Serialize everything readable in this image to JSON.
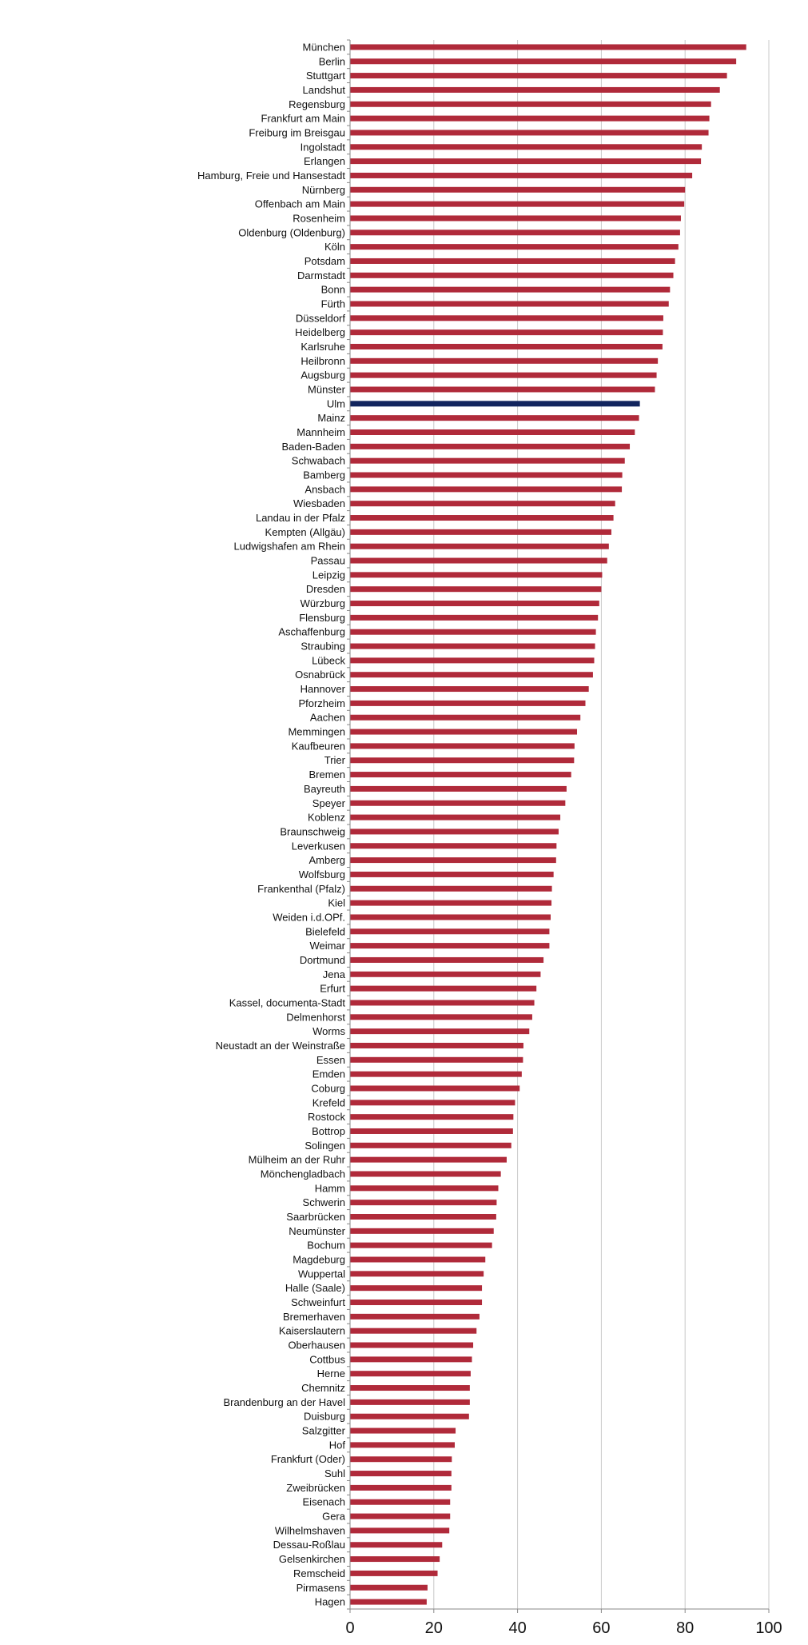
{
  "chart_data": {
    "type": "bar",
    "orientation": "horizontal",
    "categories": [
      "München",
      "Berlin",
      "Stuttgart",
      "Landshut",
      "Regensburg",
      "Frankfurt am Main",
      "Freiburg im Breisgau",
      "Ingolstadt",
      "Erlangen",
      "Hamburg, Freie und Hansestadt",
      "Nürnberg",
      "Offenbach am Main",
      "Rosenheim",
      "Oldenburg (Oldenburg)",
      "Köln",
      "Potsdam",
      "Darmstadt",
      "Bonn",
      "Fürth",
      "Düsseldorf",
      "Heidelberg",
      "Karlsruhe",
      "Heilbronn",
      "Augsburg",
      "Münster",
      "Ulm",
      "Mainz",
      "Mannheim",
      "Baden-Baden",
      "Schwabach",
      "Bamberg",
      "Ansbach",
      "Wiesbaden",
      "Landau in der Pfalz",
      "Kempten (Allgäu)",
      "Ludwigshafen am Rhein",
      "Passau",
      "Leipzig",
      "Dresden",
      "Würzburg",
      "Flensburg",
      "Aschaffenburg",
      "Straubing",
      "Lübeck",
      "Osnabrück",
      "Hannover",
      "Pforzheim",
      "Aachen",
      "Memmingen",
      "Kaufbeuren",
      "Trier",
      "Bremen",
      "Bayreuth",
      "Speyer",
      "Koblenz",
      "Braunschweig",
      "Leverkusen",
      "Amberg",
      "Wolfsburg",
      "Frankenthal (Pfalz)",
      "Kiel",
      "Weiden i.d.OPf.",
      "Bielefeld",
      "Weimar",
      "Dortmund",
      "Jena",
      "Erfurt",
      "Kassel, documenta-Stadt",
      "Delmenhorst",
      "Worms",
      "Neustadt an der Weinstraße",
      "Essen",
      "Emden",
      "Coburg",
      "Krefeld",
      "Rostock",
      "Bottrop",
      "Solingen",
      "Mülheim an der Ruhr",
      "Mönchengladbach",
      "Hamm",
      "Schwerin",
      "Saarbrücken",
      "Neumünster",
      "Bochum",
      "Magdeburg",
      "Wuppertal",
      "Halle (Saale)",
      "Schweinfurt",
      "Bremerhaven",
      "Kaiserslautern",
      "Oberhausen",
      "Cottbus",
      "Herne",
      "Chemnitz",
      "Brandenburg an der Havel",
      "Duisburg",
      "Salzgitter",
      "Hof",
      "Frankfurt (Oder)",
      "Suhl",
      "Zweibrücken",
      "Eisenach",
      "Gera",
      "Wilhelmshaven",
      "Dessau-Roßlau",
      "Gelsenkirchen",
      "Remscheid",
      "Pirmasens",
      "Hagen"
    ],
    "values": [
      94.6,
      92.2,
      90.0,
      88.3,
      86.2,
      85.8,
      85.6,
      84.0,
      83.8,
      81.7,
      80.0,
      79.8,
      79.0,
      78.8,
      78.4,
      77.6,
      77.2,
      76.4,
      76.1,
      74.8,
      74.7,
      74.6,
      73.5,
      73.2,
      72.8,
      69.2,
      69.0,
      68.0,
      66.8,
      65.6,
      65.0,
      64.9,
      63.3,
      62.9,
      62.4,
      61.8,
      61.4,
      60.2,
      60.0,
      59.5,
      59.2,
      58.7,
      58.5,
      58.3,
      58.0,
      57.0,
      56.2,
      55.0,
      54.2,
      53.6,
      53.5,
      52.8,
      51.7,
      51.4,
      50.2,
      49.8,
      49.3,
      49.2,
      48.6,
      48.2,
      48.1,
      47.9,
      47.6,
      47.6,
      46.2,
      45.5,
      44.5,
      44.0,
      43.5,
      42.8,
      41.4,
      41.3,
      41.0,
      40.5,
      39.4,
      39.0,
      38.9,
      38.5,
      37.4,
      36.0,
      35.4,
      35.0,
      34.9,
      34.3,
      33.9,
      32.3,
      31.9,
      31.5,
      31.5,
      30.9,
      30.2,
      29.4,
      29.1,
      28.8,
      28.6,
      28.6,
      28.4,
      25.2,
      25.0,
      24.3,
      24.2,
      24.2,
      23.9,
      23.9,
      23.7,
      22.0,
      21.4,
      20.9,
      18.5,
      18.3
    ],
    "highlight_category": "Ulm",
    "colors": {
      "bar": "#b02a3a",
      "highlight": "#12255e",
      "grid": "#c8c8c8",
      "axis": "#888888"
    },
    "xlim": [
      0,
      100
    ],
    "xticks": [
      0,
      20,
      40,
      60,
      80,
      100
    ],
    "grid": true,
    "title": "",
    "xlabel": "",
    "ylabel": ""
  }
}
